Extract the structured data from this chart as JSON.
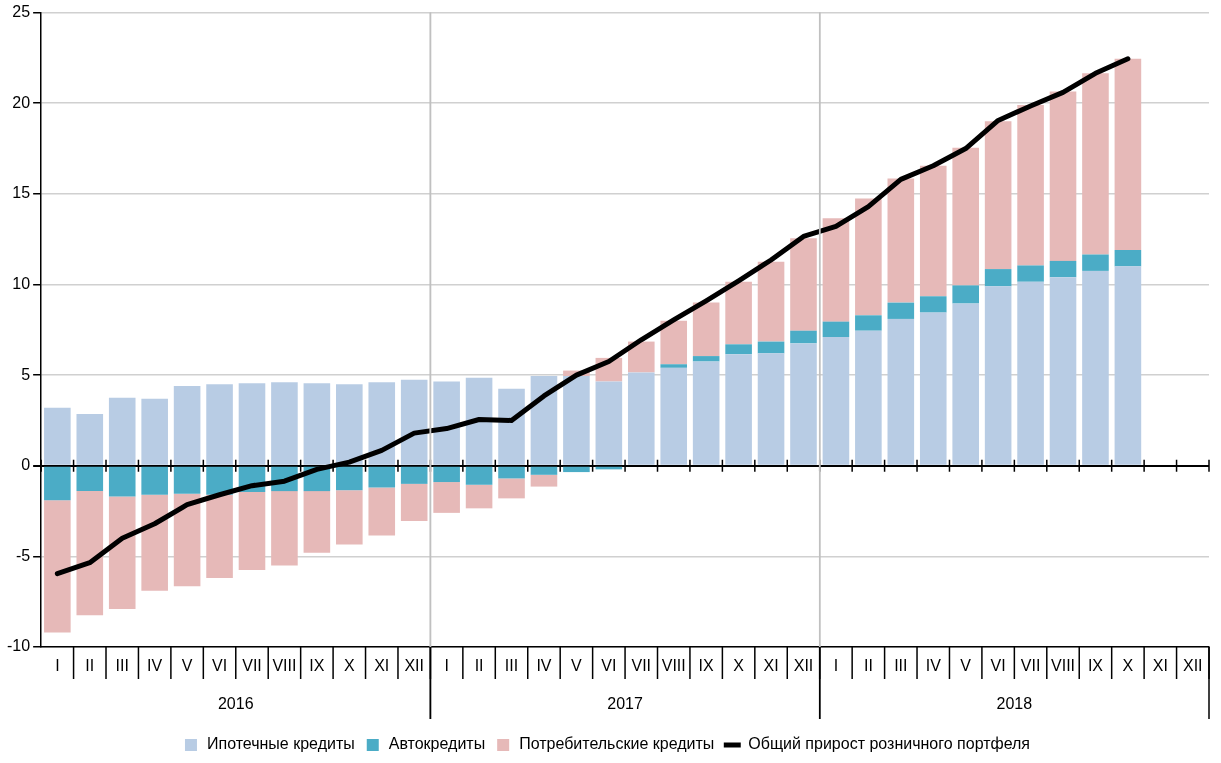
{
  "chart_data": {
    "type": "bar",
    "stacked": true,
    "categories": [
      "I",
      "II",
      "III",
      "IV",
      "V",
      "VI",
      "VII",
      "VIII",
      "IX",
      "X",
      "XI",
      "XII",
      "I",
      "II",
      "III",
      "IV",
      "V",
      "VI",
      "VII",
      "VIII",
      "IX",
      "X",
      "XI",
      "XII",
      "I",
      "II",
      "III",
      "IV",
      "V",
      "VI",
      "VII",
      "VIII",
      "IX",
      "X",
      "XI",
      "XII"
    ],
    "series": [
      {
        "name": "Ипотечные кредиты",
        "color": "#b8cce4",
        "values": [
          3.2,
          2.85,
          3.75,
          3.7,
          4.4,
          4.5,
          4.55,
          4.6,
          4.55,
          4.5,
          4.6,
          4.75,
          4.65,
          4.85,
          4.25,
          4.95,
          4.95,
          4.65,
          5.15,
          5.4,
          5.75,
          6.15,
          6.2,
          6.75,
          7.1,
          7.45,
          8.1,
          8.45,
          8.95,
          9.9,
          10.15,
          10.4,
          10.75,
          11.0,
          null,
          null
        ]
      },
      {
        "name": "Автокредиты",
        "color": "#4bacc6",
        "values": [
          -1.9,
          -1.4,
          -1.7,
          -1.6,
          -1.55,
          -1.6,
          -1.45,
          -1.4,
          -1.4,
          -1.35,
          -1.2,
          -1.0,
          -0.9,
          -1.05,
          -0.7,
          -0.5,
          -0.35,
          -0.2,
          0,
          0.2,
          0.3,
          0.55,
          0.65,
          0.7,
          0.85,
          0.85,
          0.9,
          0.9,
          1.0,
          0.95,
          0.9,
          0.9,
          0.9,
          0.9,
          null,
          null
        ]
      },
      {
        "name": "Потребительские кредиты",
        "color": "#e6b9b8",
        "values": [
          -7.3,
          -6.85,
          -6.2,
          -5.3,
          -5.1,
          -4.6,
          -4.3,
          -4.1,
          -3.4,
          -3.0,
          -2.65,
          -2.05,
          -1.7,
          -1.3,
          -1.1,
          -0.65,
          0.3,
          1.3,
          1.7,
          2.4,
          2.95,
          3.45,
          4.4,
          5.1,
          5.7,
          6.45,
          6.85,
          7.2,
          7.6,
          8.15,
          8.85,
          9.35,
          10.0,
          10.55,
          null,
          null
        ]
      },
      {
        "name": "Общий прирост розничного портфеля",
        "type": "line",
        "color": "#000000",
        "values": [
          -5.95,
          -5.35,
          -4.0,
          -3.2,
          -2.15,
          -1.6,
          -1.1,
          -0.85,
          -0.2,
          0.2,
          0.85,
          1.8,
          2.05,
          2.55,
          2.5,
          3.85,
          5.0,
          5.75,
          6.95,
          8.05,
          9.1,
          10.2,
          11.35,
          12.65,
          13.2,
          14.3,
          15.8,
          16.55,
          17.5,
          19.05,
          19.85,
          20.6,
          21.65,
          22.45,
          null,
          null
        ]
      }
    ],
    "ylim": [
      -10,
      25
    ],
    "yticks": [
      -10,
      -5,
      0,
      5,
      10,
      15,
      20,
      25
    ],
    "grid": "y",
    "legend": "bottom",
    "marker": "none",
    "line_style": "solid",
    "annotations": [
      "2016",
      "2017",
      "2018"
    ]
  }
}
